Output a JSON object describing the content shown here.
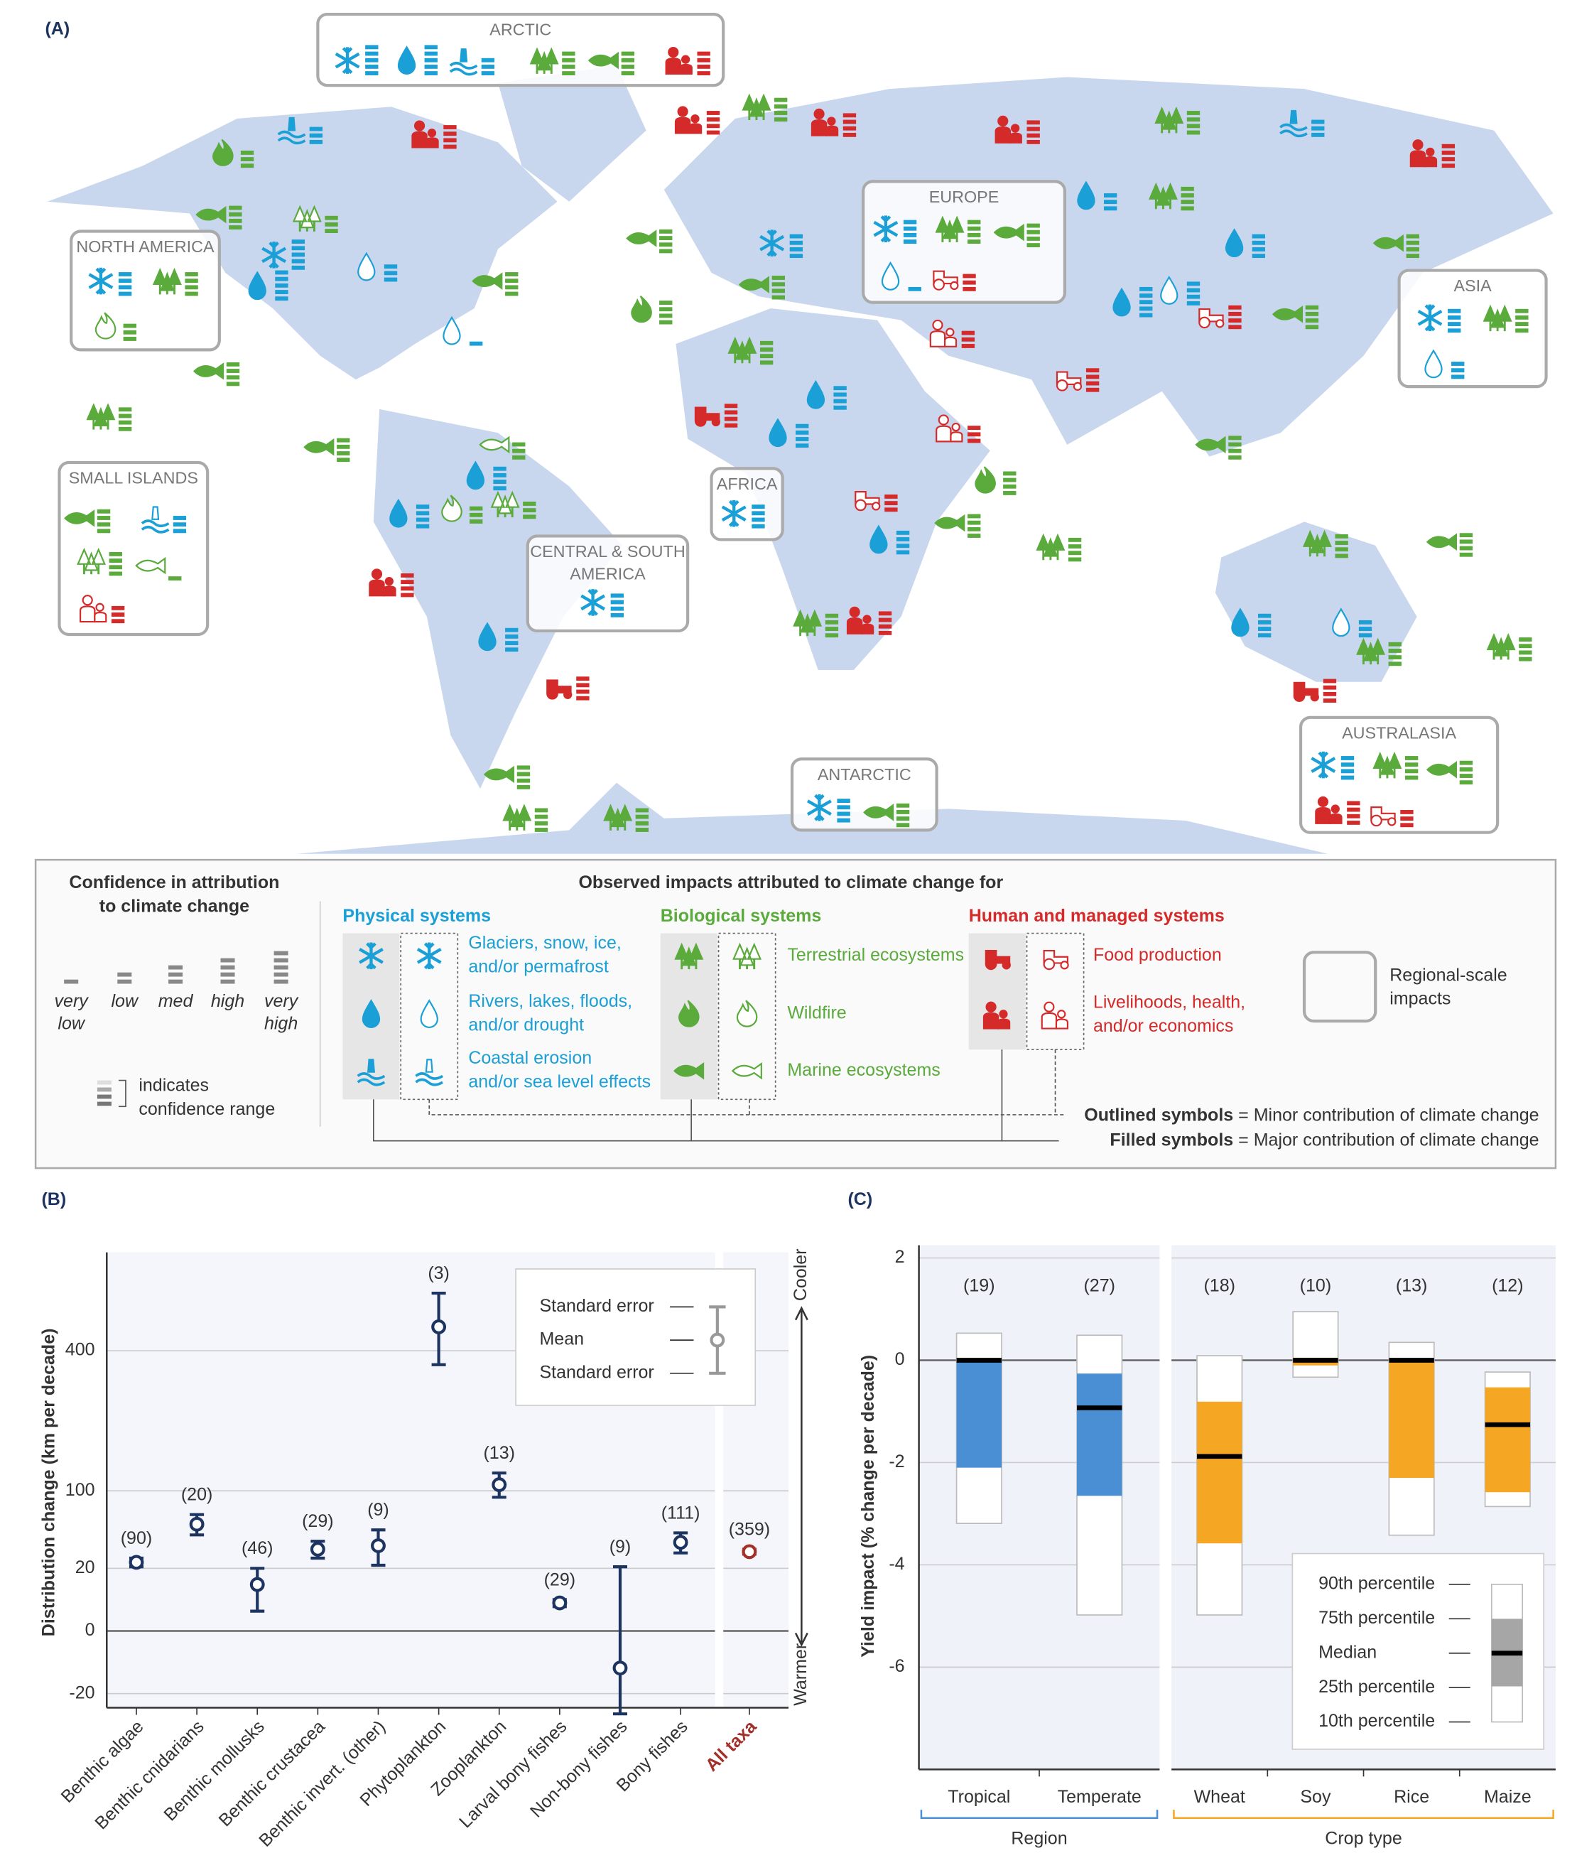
{
  "map": {
    "label": "(A)",
    "regions": [
      [
        "ARCTIC"
      ],
      [
        "NORTH AMERICA"
      ],
      [
        "EUROPE"
      ],
      [
        "ASIA"
      ],
      [
        "SMALL ISLANDS"
      ],
      [
        "AFRICA"
      ],
      [
        "CENTRAL & SOUTH",
        "AMERICA"
      ],
      [
        "ANTARCTIC"
      ],
      [
        "AUSTRALASIA"
      ]
    ]
  },
  "legend": {
    "confidence_title": [
      "Confidence in attribution",
      "to climate change"
    ],
    "levels": [
      [
        "very",
        "low"
      ],
      [
        "low"
      ],
      [
        "med"
      ],
      [
        "high"
      ],
      [
        "very",
        "high"
      ]
    ],
    "range_note": [
      "indicates",
      "confidence range"
    ],
    "impacts_title": "Observed impacts attributed to climate change for",
    "systems": [
      {
        "name": "Physical systems",
        "color": "#1a9fd6",
        "items": [
          [
            "Glaciers, snow, ice,",
            "and/or permafrost"
          ],
          [
            "Rivers, lakes, floods,",
            "and/or drought"
          ],
          [
            "Coastal erosion",
            "and/or sea level effects"
          ]
        ]
      },
      {
        "name": "Biological systems",
        "color": "#5aaa3c",
        "items": [
          [
            "Terrestrial ecosystems"
          ],
          [
            "Wildfire"
          ],
          [
            "Marine ecosystems"
          ]
        ]
      },
      {
        "name": "Human and managed systems",
        "color": "#d52a2a",
        "items": [
          [
            "Food production"
          ],
          [
            "Livelihoods, health,",
            "and/or economics"
          ]
        ]
      }
    ],
    "regional": [
      "Regional-scale",
      "impacts"
    ],
    "outlined": {
      "bold": "Outlined symbols",
      "rest": " = Minor contribution of climate change"
    },
    "filled": {
      "bold": "Filled symbols",
      "rest": " = Major contribution of climate change"
    }
  },
  "chart_data": [
    {
      "type": "errorbar",
      "label": "(B)",
      "ylabel": "Distribution change (km per decade)",
      "categories": [
        "Benthic algae",
        "Benthic cnidarians",
        "Benthic mollusks",
        "Benthic crustacea",
        "Benthic invert. (other)",
        "Phytoplankton",
        "Zooplankton",
        "Larval bony fishes",
        "Non-bony fishes",
        "Bony fishes",
        "All taxa"
      ],
      "values": [
        24,
        58,
        11,
        34,
        37,
        471,
        109,
        4,
        -7,
        40,
        32
      ],
      "errors": [
        3,
        11,
        9,
        7,
        15,
        110,
        18,
        1,
        28,
        9,
        2
      ],
      "n_labels": [
        "(90)",
        "(20)",
        "(46)",
        "(29)",
        "(9)",
        "(3)",
        "(13)",
        "(29)",
        "(9)",
        "(111)",
        "(359)"
      ],
      "colors": [
        "#1d3461",
        "#1d3461",
        "#1d3461",
        "#1d3461",
        "#1d3461",
        "#1d3461",
        "#1d3461",
        "#1d3461",
        "#1d3461",
        "#1d3461",
        "#a3302a"
      ],
      "ylim": [
        -30,
        730
      ],
      "yscale": "sqrt",
      "yticks": [
        -20,
        0,
        20,
        100,
        400
      ],
      "grid": true,
      "legend": [
        "Standard error",
        "Mean",
        "Standard error"
      ],
      "annotations": [
        "Cooler",
        "Warmer"
      ]
    },
    {
      "type": "box",
      "label": "(C)",
      "ylabel": "Yield impact (% change per decade)",
      "ylim": [
        -8,
        2.25
      ],
      "yticks": [
        2,
        0,
        -2,
        -4,
        -6
      ],
      "grid": true,
      "panels": [
        {
          "group": "Region",
          "color": "#4a8fd3",
          "categories": [
            "Tropical",
            "Temperate"
          ],
          "p90": [
            0.53,
            0.49
          ],
          "p75": [
            0,
            -0.26
          ],
          "median": [
            0,
            -0.93
          ],
          "p25": [
            -2.1,
            -2.65
          ],
          "p10": [
            -3.19,
            -4.98
          ],
          "n_labels": [
            "(19)",
            "(27)"
          ]
        },
        {
          "group": "Crop type",
          "color": "#f5a623",
          "categories": [
            "Wheat",
            "Soy",
            "Rice",
            "Maize"
          ],
          "p90": [
            0.09,
            0.95,
            0.35,
            -0.23
          ],
          "p75": [
            -0.81,
            0.05,
            0.02,
            -0.53
          ],
          "median": [
            -1.88,
            0,
            0,
            -1.26
          ],
          "p25": [
            -3.58,
            -0.1,
            -2.3,
            -2.58
          ],
          "p10": [
            -4.98,
            -0.33,
            -3.42,
            -2.86
          ],
          "n_labels": [
            "(18)",
            "(10)",
            "(13)",
            "(12)"
          ]
        }
      ],
      "legend": [
        "90th percentile",
        "75th percentile",
        "Median",
        "25th percentile",
        "10th percentile"
      ]
    }
  ]
}
